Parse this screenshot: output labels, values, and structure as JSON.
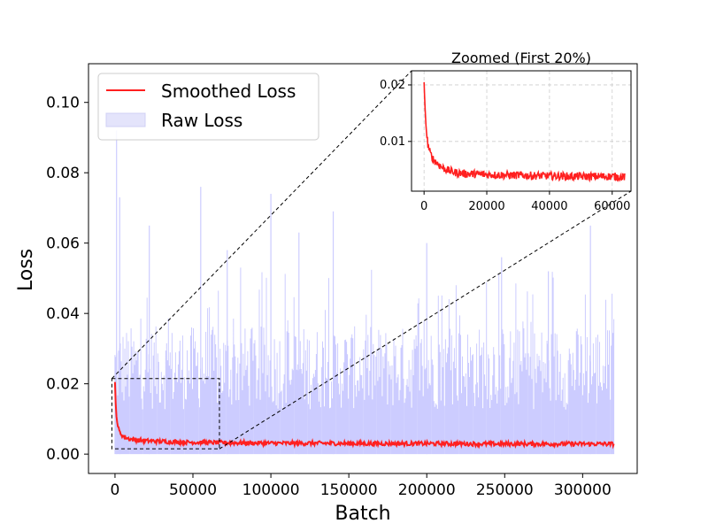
{
  "chart_data": [
    {
      "type": "line",
      "role": "main",
      "title": "",
      "xlabel": "Batch",
      "ylabel": "Loss",
      "xlim": [
        -17000,
        335000
      ],
      "ylim": [
        -0.0055,
        0.111
      ],
      "xticks": [
        0,
        50000,
        100000,
        150000,
        200000,
        250000,
        300000
      ],
      "xtick_labels": [
        "0",
        "50000",
        "100000",
        "150000",
        "200000",
        "250000",
        "300000"
      ],
      "yticks": [
        0.0,
        0.02,
        0.04,
        0.06,
        0.08,
        0.1
      ],
      "ytick_labels": [
        "0.00",
        "0.02",
        "0.04",
        "0.06",
        "0.08",
        "0.10"
      ],
      "grid": false,
      "legend": {
        "placement": "top-left",
        "entries": [
          "Smoothed Loss",
          "Raw Loss"
        ]
      },
      "series": [
        {
          "name": "Smoothed Loss",
          "style": "line",
          "color": "#ff2020",
          "x": [
            0,
            500,
            1000,
            2000,
            3000,
            5000,
            8000,
            12000,
            20000,
            30000,
            45000,
            60000,
            80000,
            100000,
            130000,
            160000,
            200000,
            240000,
            280000,
            320000
          ],
          "values": [
            0.0205,
            0.014,
            0.01,
            0.0075,
            0.0062,
            0.0052,
            0.0045,
            0.0041,
            0.0038,
            0.0036,
            0.0034,
            0.0033,
            0.0032,
            0.0031,
            0.0031,
            0.003,
            0.003,
            0.0029,
            0.0029,
            0.0029
          ]
        },
        {
          "name": "Raw Loss",
          "style": "spikes",
          "color": "#ccccff",
          "x_range": [
            0,
            320000
          ],
          "baseline": 0.0,
          "typical_peak": 0.028,
          "peaks": [
            {
              "x": 1000,
              "y": 0.092
            },
            {
              "x": 3000,
              "y": 0.073
            },
            {
              "x": 22000,
              "y": 0.065
            },
            {
              "x": 55000,
              "y": 0.076
            },
            {
              "x": 72000,
              "y": 0.058
            },
            {
              "x": 100000,
              "y": 0.074
            },
            {
              "x": 118000,
              "y": 0.063
            },
            {
              "x": 140000,
              "y": 0.069
            },
            {
              "x": 200000,
              "y": 0.06
            },
            {
              "x": 248000,
              "y": 0.056
            },
            {
              "x": 278000,
              "y": 0.052
            },
            {
              "x": 305000,
              "y": 0.065
            }
          ]
        }
      ],
      "zoom_region": {
        "x": [
          -2000,
          67000
        ],
        "y": [
          0.0015,
          0.0215
        ]
      }
    },
    {
      "type": "line",
      "role": "inset",
      "title": "Zoomed (First 20%)",
      "xlim": [
        -4000,
        66000
      ],
      "ylim": [
        0.0012,
        0.0225
      ],
      "xticks": [
        0,
        20000,
        40000,
        60000
      ],
      "xtick_labels": [
        "0",
        "20000",
        "40000",
        "60000"
      ],
      "yticks": [
        0.01,
        0.02
      ],
      "ytick_labels": [
        "0.01",
        "0.02"
      ],
      "grid": true,
      "series": [
        {
          "name": "Smoothed Loss",
          "color": "#ff2020",
          "x": [
            0,
            300,
            700,
            1200,
            2000,
            3000,
            4500,
            6000,
            8000,
            10000,
            13000,
            17000,
            22000,
            30000,
            40000,
            50000,
            60000,
            64000
          ],
          "values": [
            0.0205,
            0.016,
            0.012,
            0.0095,
            0.0078,
            0.0068,
            0.006,
            0.0053,
            0.0048,
            0.0045,
            0.0043,
            0.0042,
            0.0041,
            0.004,
            0.0039,
            0.0038,
            0.0038,
            0.0037
          ]
        }
      ]
    }
  ]
}
